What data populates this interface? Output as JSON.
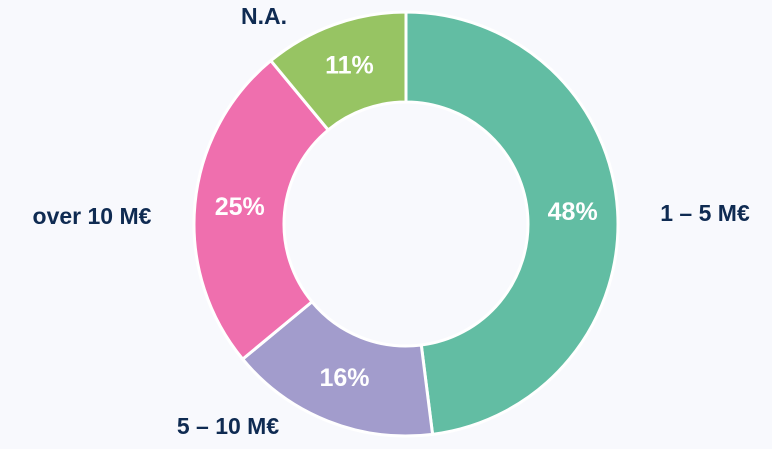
{
  "chart_data": {
    "type": "donut",
    "categories": [
      "1 – 5 M€",
      "5 – 10 M€",
      "over 10 M€",
      "N.A."
    ],
    "values": [
      48,
      16,
      25,
      11
    ],
    "value_labels": [
      "48%",
      "16%",
      "25%",
      "11%"
    ],
    "colors": [
      "#62bda3",
      "#a29ccc",
      "#ef6fae",
      "#97c463"
    ]
  }
}
